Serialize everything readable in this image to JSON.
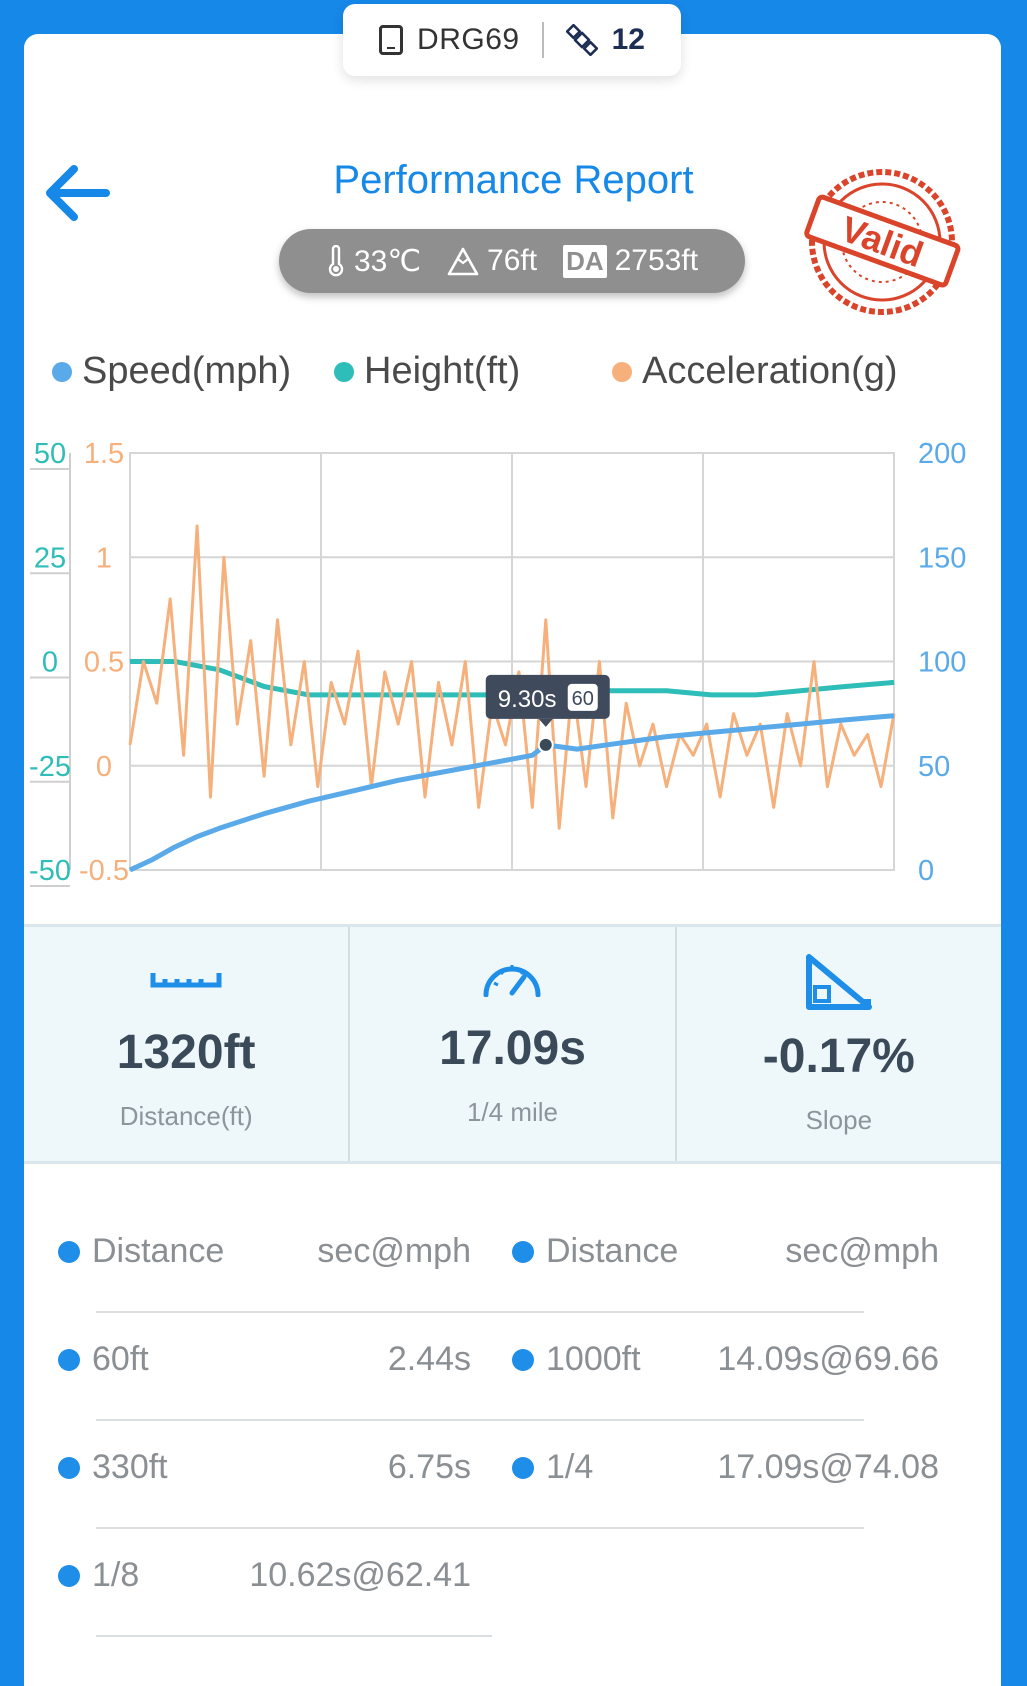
{
  "device": {
    "name": "DRG69",
    "satellites": "12",
    "phone_icon": "phone-icon",
    "sat_icon": "satellite-icon"
  },
  "header": {
    "title": "Performance Report",
    "back_icon": "arrow-left-icon"
  },
  "conditions": {
    "temperature": "33℃",
    "altitude": "76ft",
    "da_label": "DA",
    "density_altitude": "2753ft"
  },
  "stamp": {
    "text": "Valid"
  },
  "legend": [
    {
      "label": "Speed(mph)",
      "color": "#5aa9e8"
    },
    {
      "label": "Height(ft)",
      "color": "#2ebdb8"
    },
    {
      "label": "Acceleration(g)",
      "color": "#f5b07c"
    }
  ],
  "chart_data": {
    "type": "line",
    "x_range": [
      0,
      17.09
    ],
    "axes": {
      "height_ticks": [
        "50",
        "25",
        "0",
        "-25",
        "-50"
      ],
      "accel_ticks": [
        "1.5",
        "1",
        "0.5",
        "0",
        "-0.5"
      ],
      "speed_ticks": [
        "200",
        "150",
        "100",
        "50",
        "0"
      ],
      "height_range": [
        -50,
        50
      ],
      "accel_range": [
        -0.5,
        1.5
      ],
      "speed_range": [
        0,
        200
      ]
    },
    "tooltip": {
      "time": "9.30s",
      "speed": "60"
    },
    "grid": true,
    "series": [
      {
        "name": "Speed(mph)",
        "color": "#5aa9e8",
        "x": [
          0,
          0.5,
          1,
          1.5,
          2,
          3,
          4,
          5,
          6,
          7,
          8,
          9,
          9.3,
          10,
          11,
          12,
          13,
          14,
          15,
          16,
          17.09
        ],
        "values": [
          0,
          5,
          11,
          16,
          20,
          27,
          33,
          38,
          43,
          47,
          51,
          55,
          60,
          58,
          61,
          64,
          66,
          68,
          70,
          72,
          74
        ]
      },
      {
        "name": "Height(ft)",
        "color": "#2ebdb8",
        "x": [
          0,
          1,
          1.5,
          2,
          3,
          4,
          5,
          6,
          7,
          8,
          9,
          10,
          11,
          12,
          13,
          14,
          15,
          16,
          17.09
        ],
        "values": [
          0,
          0,
          -1,
          -2,
          -6,
          -8,
          -8,
          -8,
          -8,
          -8,
          -8,
          -7,
          -7,
          -7,
          -8,
          -8,
          -7,
          -6,
          -5
        ]
      },
      {
        "name": "Acceleration(g)",
        "color": "#f5b07c",
        "x": [
          0,
          0.3,
          0.6,
          0.9,
          1.2,
          1.5,
          1.8,
          2.1,
          2.4,
          2.7,
          3.0,
          3.3,
          3.6,
          3.9,
          4.2,
          4.5,
          4.8,
          5.1,
          5.4,
          5.7,
          6.0,
          6.3,
          6.6,
          6.9,
          7.2,
          7.5,
          7.8,
          8.1,
          8.4,
          8.7,
          9.0,
          9.3,
          9.6,
          9.9,
          10.2,
          10.5,
          10.8,
          11.1,
          11.4,
          11.7,
          12.0,
          12.3,
          12.6,
          12.9,
          13.2,
          13.5,
          13.8,
          14.1,
          14.4,
          14.7,
          15.0,
          15.3,
          15.6,
          15.9,
          16.2,
          16.5,
          16.8,
          17.09
        ],
        "values": [
          0.1,
          0.5,
          0.3,
          0.8,
          0.05,
          1.15,
          -0.15,
          1.0,
          0.2,
          0.6,
          -0.05,
          0.7,
          0.1,
          0.5,
          -0.1,
          0.4,
          0.2,
          0.55,
          -0.1,
          0.45,
          0.2,
          0.5,
          -0.15,
          0.4,
          0.1,
          0.5,
          -0.2,
          0.3,
          0.1,
          0.45,
          -0.2,
          0.7,
          -0.3,
          0.4,
          -0.1,
          0.5,
          -0.25,
          0.3,
          0.0,
          0.2,
          -0.1,
          0.15,
          0.05,
          0.2,
          -0.15,
          0.25,
          0.05,
          0.2,
          -0.2,
          0.25,
          0.0,
          0.5,
          -0.1,
          0.2,
          0.05,
          0.15,
          -0.1,
          0.25
        ]
      }
    ]
  },
  "metrics": [
    {
      "value": "1320ft",
      "label": "Distance(ft)",
      "icon": "ruler-icon"
    },
    {
      "value": "17.09s",
      "label": "1/4 mile",
      "icon": "speedometer-icon"
    },
    {
      "value": "-0.17%",
      "label": "Slope",
      "icon": "slope-icon"
    }
  ],
  "splits": {
    "header": {
      "col1": "Distance",
      "col2": "sec@mph",
      "col3": "Distance",
      "col4": "sec@mph"
    },
    "rows": [
      {
        "d1": "60ft",
        "v1": "2.44s",
        "d2": "1000ft",
        "v2": "14.09s@69.66"
      },
      {
        "d1": "330ft",
        "v1": "6.75s",
        "d2": "1/4",
        "v2": "17.09s@74.08"
      },
      {
        "d1": "1/8",
        "v1": "10.62s@62.41",
        "d2": "",
        "v2": ""
      }
    ]
  }
}
